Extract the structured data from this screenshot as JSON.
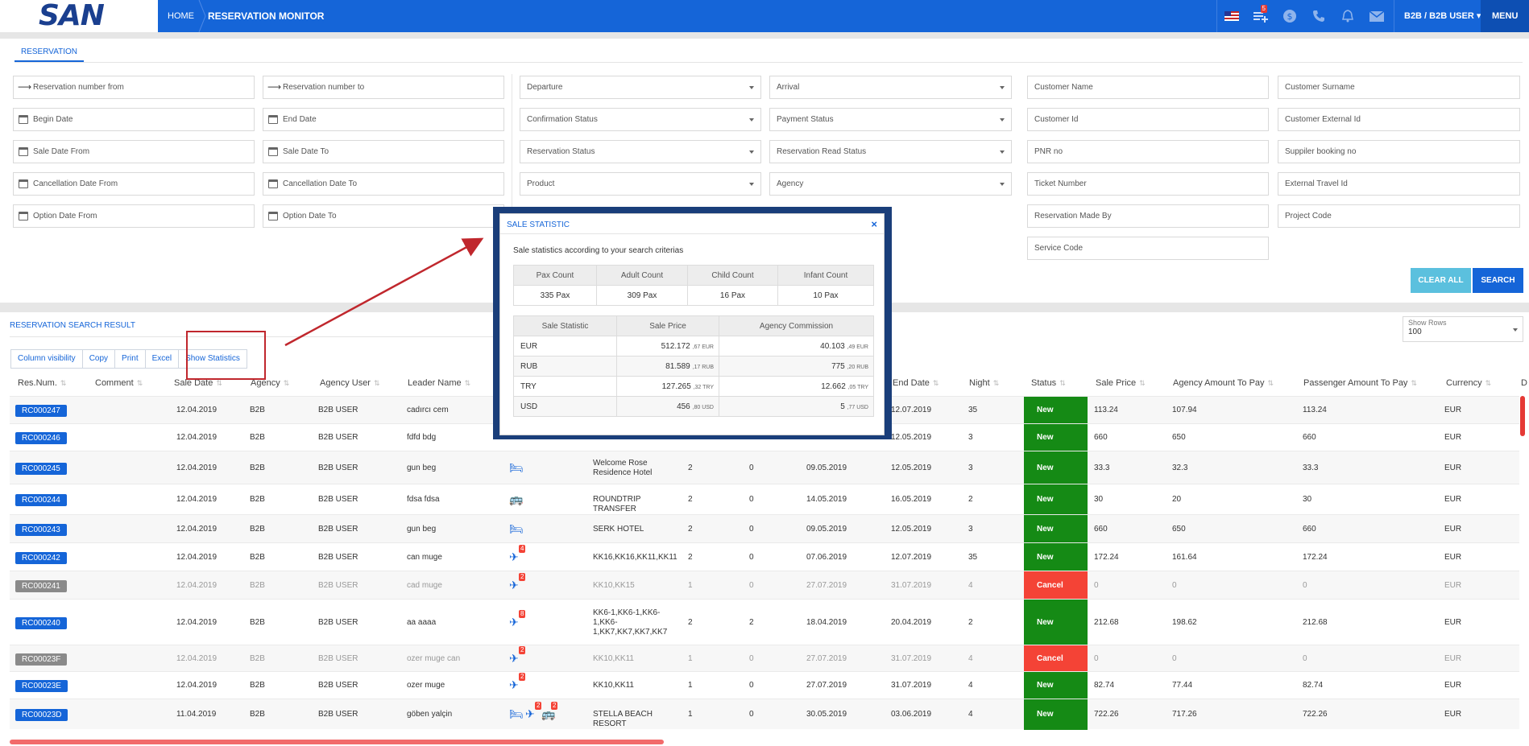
{
  "header": {
    "logo": "SAN",
    "home": "HOME",
    "page_title": "RESERVATION MONITOR",
    "cart_badge": "5",
    "user": "B2B / B2B USER",
    "menu": "MENU"
  },
  "filters": {
    "tab": "RESERVATION",
    "reservation_from": "Reservation number from",
    "reservation_to": "Reservation number to",
    "begin_date": "Begin Date",
    "end_date": "End Date",
    "sale_date_from": "Sale Date From",
    "sale_date_to": "Sale Date To",
    "cancel_from": "Cancellation Date From",
    "cancel_to": "Cancellation Date To",
    "option_from": "Option Date From",
    "option_to": "Option Date To",
    "departure": "Departure",
    "arrival": "Arrival",
    "confirmation_status": "Confirmation Status",
    "payment_status": "Payment Status",
    "reservation_status": "Reservation Status",
    "reservation_read_status": "Reservation Read Status",
    "product": "Product",
    "agency": "Agency",
    "customer_name": "Customer Name",
    "customer_surname": "Customer Surname",
    "customer_id": "Customer Id",
    "customer_external_id": "Customer External Id",
    "pnr_no": "PNR no",
    "supplier_booking_no": "Suppiler booking no",
    "ticket_number": "Ticket Number",
    "external_travel_id": "External Travel Id",
    "reservation_made_by": "Reservation Made By",
    "project_code": "Project Code",
    "service_code": "Service Code",
    "clear_all": "CLEAR ALL",
    "search": "SEARCH"
  },
  "results": {
    "title": "RESERVATION SEARCH RESULT",
    "show_rows_label": "Show Rows",
    "show_rows_value": "100",
    "toolbar": [
      "Column visibility",
      "Copy",
      "Print",
      "Excel",
      "Show Statistics"
    ],
    "columns": [
      "Res.Num.",
      "Comment",
      "Sale Date",
      "Agency",
      "Agency User",
      "Leader Name",
      "End Date",
      "Night",
      "Status",
      "Sale Price",
      "Agency Amount To Pay",
      "Passenger Amount To Pay",
      "Currency",
      "D"
    ],
    "rows": [
      {
        "res": "RC000247",
        "sale": "12.04.2019",
        "agency": "B2B",
        "user": "B2B USER",
        "leader": "cadırcı cem",
        "service": "",
        "adult": "",
        "child": "",
        "begin": "",
        "end": "12.07.2019",
        "night": "35",
        "status": "New",
        "price": "113.24",
        "agency_pay": "107.94",
        "pax_pay": "113.24",
        "currency": "EUR"
      },
      {
        "res": "RC000246",
        "sale": "12.04.2019",
        "agency": "B2B",
        "user": "B2B USER",
        "leader": "fdfd bdg",
        "service": "",
        "adult": "",
        "child": "",
        "begin": "",
        "end": "12.05.2019",
        "night": "3",
        "status": "New",
        "price": "660",
        "agency_pay": "650",
        "pax_pay": "660",
        "currency": "EUR"
      },
      {
        "res": "RC000245",
        "sale": "12.04.2019",
        "agency": "B2B",
        "user": "B2B USER",
        "leader": "gun beg",
        "service": "Welcome Rose Residence Hotel",
        "adult": "2",
        "child": "0",
        "begin": "09.05.2019",
        "end": "12.05.2019",
        "night": "3",
        "status": "New",
        "price": "33.3",
        "agency_pay": "32.3",
        "pax_pay": "33.3",
        "currency": "EUR"
      },
      {
        "res": "RC000244",
        "sale": "12.04.2019",
        "agency": "B2B",
        "user": "B2B USER",
        "leader": "fdsa fdsa",
        "service": "ROUNDTRIP TRANSFER",
        "adult": "2",
        "child": "0",
        "begin": "14.05.2019",
        "end": "16.05.2019",
        "night": "2",
        "status": "New",
        "price": "30",
        "agency_pay": "20",
        "pax_pay": "30",
        "currency": "EUR"
      },
      {
        "res": "RC000243",
        "sale": "12.04.2019",
        "agency": "B2B",
        "user": "B2B USER",
        "leader": "gun beg",
        "service": "SERK HOTEL",
        "adult": "2",
        "child": "0",
        "begin": "09.05.2019",
        "end": "12.05.2019",
        "night": "3",
        "status": "New",
        "price": "660",
        "agency_pay": "650",
        "pax_pay": "660",
        "currency": "EUR"
      },
      {
        "res": "RC000242",
        "sale": "12.04.2019",
        "agency": "B2B",
        "user": "B2B USER",
        "leader": "can muge",
        "service": "KK16,KK16,KK11,KK11",
        "adult": "2",
        "child": "0",
        "begin": "07.06.2019",
        "end": "12.07.2019",
        "night": "35",
        "status": "New",
        "price": "172.24",
        "agency_pay": "161.64",
        "pax_pay": "172.24",
        "currency": "EUR"
      },
      {
        "res": "RC000241",
        "sale": "12.04.2019",
        "agency": "B2B",
        "user": "B2B USER",
        "leader": "cad muge",
        "service": "KK10,KK15",
        "adult": "1",
        "child": "0",
        "begin": "27.07.2019",
        "end": "31.07.2019",
        "night": "4",
        "status": "Cancel",
        "price": "0",
        "agency_pay": "0",
        "pax_pay": "0",
        "currency": "EUR"
      },
      {
        "res": "RC000240",
        "sale": "12.04.2019",
        "agency": "B2B",
        "user": "B2B USER",
        "leader": "aa aaaa",
        "service": "KK6-1,KK6-1,KK6-1,KK6-1,KK7,KK7,KK7,KK7",
        "adult": "2",
        "child": "2",
        "begin": "18.04.2019",
        "end": "20.04.2019",
        "night": "2",
        "status": "New",
        "price": "212.68",
        "agency_pay": "198.62",
        "pax_pay": "212.68",
        "currency": "EUR"
      },
      {
        "res": "RC00023F",
        "sale": "12.04.2019",
        "agency": "B2B",
        "user": "B2B USER",
        "leader": "ozer muge can",
        "service": "KK10,KK11",
        "adult": "1",
        "child": "0",
        "begin": "27.07.2019",
        "end": "31.07.2019",
        "night": "4",
        "status": "Cancel",
        "price": "0",
        "agency_pay": "0",
        "pax_pay": "0",
        "currency": "EUR"
      },
      {
        "res": "RC00023E",
        "sale": "12.04.2019",
        "agency": "B2B",
        "user": "B2B USER",
        "leader": "ozer muge",
        "service": "KK10,KK11",
        "adult": "1",
        "child": "0",
        "begin": "27.07.2019",
        "end": "31.07.2019",
        "night": "4",
        "status": "New",
        "price": "82.74",
        "agency_pay": "77.44",
        "pax_pay": "82.74",
        "currency": "EUR"
      },
      {
        "res": "RC00023D",
        "sale": "11.04.2019",
        "agency": "B2B",
        "user": "B2B USER",
        "leader": "göben yalçin",
        "service": "STELLA BEACH RESORT",
        "adult": "1",
        "child": "0",
        "begin": "30.05.2019",
        "end": "03.06.2019",
        "night": "4",
        "status": "New",
        "price": "722.26",
        "agency_pay": "717.26",
        "pax_pay": "722.26",
        "currency": "EUR"
      }
    ]
  },
  "modal": {
    "title": "SALE STATISTIC",
    "close": "×",
    "subtitle": "Sale statistics according to your search criterias",
    "pax_headers": [
      "Pax Count",
      "Adult Count",
      "Child Count",
      "Infant Count"
    ],
    "pax_values": [
      "335 Pax",
      "309 Pax",
      "16 Pax",
      "10 Pax"
    ],
    "sale_headers": [
      "Sale Statistic",
      "Sale Price",
      "Agency Commission"
    ],
    "sale_rows": [
      {
        "cur": "EUR",
        "price": "512.172",
        "price_dec": ",67 EUR",
        "comm": "40.103",
        "comm_dec": ",49 EUR"
      },
      {
        "cur": "RUB",
        "price": "81.589",
        "price_dec": ",17 RUB",
        "comm": "775",
        "comm_dec": ",20 RUB"
      },
      {
        "cur": "TRY",
        "price": "127.265",
        "price_dec": ",32 TRY",
        "comm": "12.662",
        "comm_dec": ",05 TRY"
      },
      {
        "cur": "USD",
        "price": "456",
        "price_dec": ",80 USD",
        "comm": "5",
        "comm_dec": ",77 USD"
      }
    ]
  },
  "colors": {
    "primary": "#1565d8",
    "new": "#158a15",
    "cancel": "#f44336",
    "annotation": "#c0272d"
  }
}
